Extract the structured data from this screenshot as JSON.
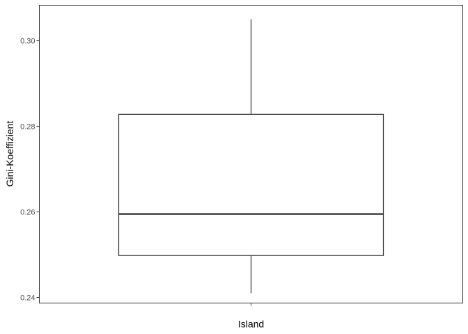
{
  "chart_data": {
    "type": "boxplot",
    "title": "",
    "xlabel": "",
    "ylabel": "Gini-Koeffizient",
    "categories": [
      "Island"
    ],
    "boxes": [
      {
        "category": "Island",
        "whisker_low": 0.241,
        "q1": 0.2498,
        "median": 0.2595,
        "q3": 0.2828,
        "whisker_high": 0.305
      }
    ],
    "ylim": [
      0.2387,
      0.3083
    ],
    "yticks": [
      0.24,
      0.26,
      0.28,
      0.3
    ],
    "ytick_labels": [
      "0.24",
      "0.26",
      "0.28",
      "0.30"
    ],
    "grid": false,
    "legend": "none",
    "colors": {
      "box_stroke": "#333333",
      "box_fill": "#ffffff",
      "panel_border": "#333333",
      "tick_text": "#4d4d4d",
      "axis_title": "#000000"
    }
  }
}
